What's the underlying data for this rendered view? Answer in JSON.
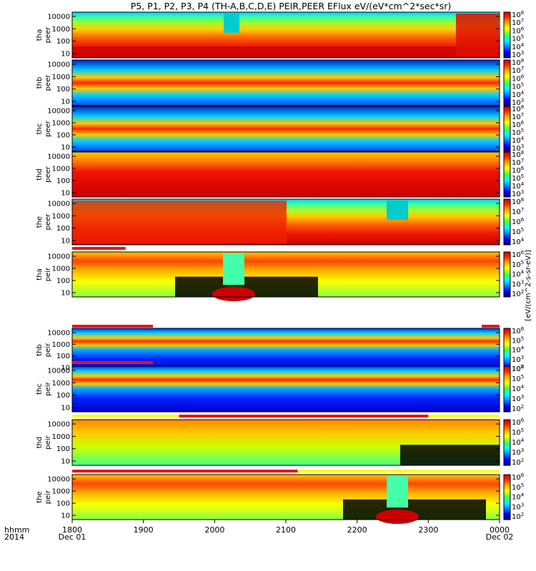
{
  "title": "P5, P1, P2, P3, P4 (TH-A,B,C,D,E) PEIR,PEER EFlux eV/(eV*cm^2*sec*sr)",
  "colors": {
    "flag_red": "#ee1111",
    "flag_yellow": "#ffff00",
    "colormap": [
      "#000080",
      "#0000ff",
      "#00aaff",
      "#00ffff",
      "#44ff44",
      "#ffff00",
      "#ff9900",
      "#ff2200",
      "#cc0000"
    ]
  },
  "chart_data": {
    "type": "heatmap",
    "colorbar_label": "[eV/(cm^2-s-sr-eV)]",
    "yticks": [
      "10000",
      "1000",
      "100",
      "10"
    ],
    "time_axis": {
      "ticks": [
        "1800",
        "1900",
        "2000",
        "2100",
        "2200",
        "2300",
        "0000"
      ],
      "row1_label": "hhmm",
      "row2_label": "2014",
      "start_date": "Dec 01",
      "end_date": "Dec 02"
    },
    "panels": [
      {
        "id": "tha_peer",
        "probe": "tha",
        "instrument": "peer",
        "cbar_ticks": [
          "10^8",
          "10^7",
          "10^6",
          "10^5",
          "10^4",
          "10^3"
        ],
        "flag_bars": []
      },
      {
        "id": "thb_peer",
        "probe": "thb",
        "instrument": "peer",
        "cbar_ticks": [
          "10^8",
          "10^7",
          "10^6",
          "10^5",
          "10^4",
          "10^3"
        ],
        "flag_bars": []
      },
      {
        "id": "thc_peer",
        "probe": "thc",
        "instrument": "peer",
        "cbar_ticks": [
          "10^8",
          "10^7",
          "10^6",
          "10^5",
          "10^4",
          "10^3"
        ],
        "flag_bars": []
      },
      {
        "id": "thd_peer",
        "probe": "thd",
        "instrument": "peer",
        "cbar_ticks": [
          "10^8",
          "10^7",
          "10^6",
          "10^5",
          "10^4",
          "10^3"
        ],
        "flag_bars": []
      },
      {
        "id": "the_peer",
        "probe": "the",
        "instrument": "peer",
        "cbar_ticks": [
          "10^8",
          "10^7",
          "10^6",
          "10^5",
          "10^4"
        ],
        "flag_bars": [
          {
            "color": "red",
            "start_hhmm": "1800",
            "end_hhmm": "1845"
          }
        ]
      },
      {
        "id": "tha_peir",
        "probe": "tha",
        "instrument": "peir",
        "cbar_ticks": [
          "10^6",
          "10^5",
          "10^4",
          "10^3",
          "10^2"
        ],
        "flag_bars": [
          {
            "color": "red",
            "start_hhmm": "1800",
            "end_hhmm": "1908"
          },
          {
            "color": "red",
            "start_hhmm": "2345",
            "end_hhmm": "0000"
          }
        ]
      },
      {
        "id": "thb_peir",
        "probe": "thb",
        "instrument": "peir",
        "cbar_ticks": [
          "10^6",
          "10^5",
          "10^4",
          "10^3",
          "10^2"
        ],
        "flag_bars": [
          {
            "color": "red",
            "start_hhmm": "1800",
            "end_hhmm": "1908"
          }
        ]
      },
      {
        "id": "thc_peir",
        "probe": "thc",
        "instrument": "peir",
        "cbar_ticks": [
          "10^6",
          "10^5",
          "10^4",
          "10^3",
          "10^2"
        ],
        "flag_bars": [
          {
            "color": "yellow",
            "start_hhmm": "1800",
            "end_hhmm": "0000"
          },
          {
            "color": "red",
            "start_hhmm": "1930",
            "end_hhmm": "2300"
          }
        ]
      },
      {
        "id": "thd_peir",
        "probe": "thd",
        "instrument": "peir",
        "cbar_ticks": [
          "10^6",
          "10^5",
          "10^4",
          "10^3",
          "10^2"
        ],
        "flag_bars": [
          {
            "color": "red",
            "start_hhmm": "1800",
            "end_hhmm": "2110"
          },
          {
            "color": "yellow",
            "start_hhmm": "2110",
            "end_hhmm": "0000"
          }
        ]
      },
      {
        "id": "the_peir",
        "probe": "the",
        "instrument": "peir",
        "cbar_ticks": [
          "10^6",
          "10^5",
          "10^4",
          "10^3",
          "10^2"
        ],
        "flag_bars": []
      }
    ]
  }
}
